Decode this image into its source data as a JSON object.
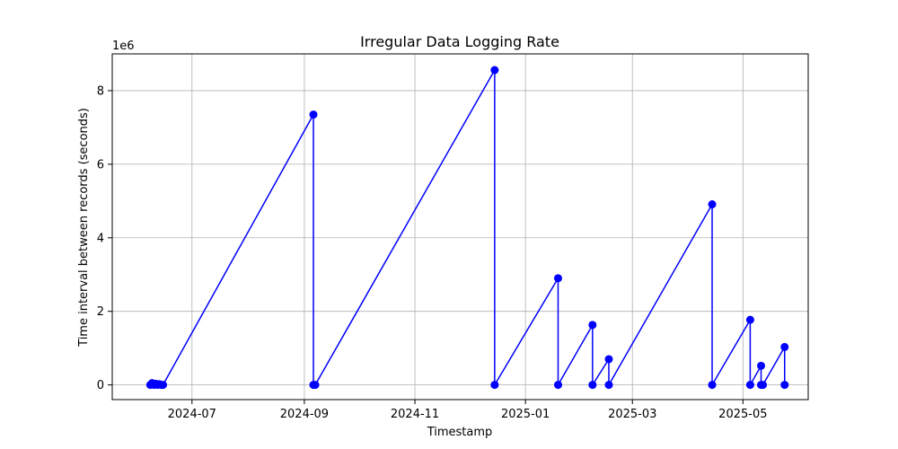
{
  "chart_data": {
    "type": "line",
    "title": "Irregular Data Logging Rate",
    "xlabel": "Timestamp",
    "ylabel": "Time interval between records (seconds)",
    "y_offset_label": "1e6",
    "y_multiplier": 1000000,
    "xlim": [
      "2024-05-18",
      "2025-06-06"
    ],
    "ylim": [
      -400000,
      9000000
    ],
    "x_ticks": [
      "2024-07-01",
      "2024-09-01",
      "2024-11-01",
      "2025-01-01",
      "2025-03-01",
      "2025-05-01"
    ],
    "x_tick_labels": [
      "2024-07",
      "2024-09",
      "2024-11",
      "2025-01",
      "2025-03",
      "2025-05"
    ],
    "y_ticks": [
      0,
      2000000,
      4000000,
      6000000,
      8000000
    ],
    "y_tick_labels": [
      "0",
      "2",
      "4",
      "6",
      "8"
    ],
    "grid": true,
    "series": [
      {
        "color": "#0000ff",
        "marker": "circle",
        "points": [
          {
            "x": "2024-06-08",
            "y": 0
          },
          {
            "x": "2024-06-09",
            "y": 50000
          },
          {
            "x": "2024-06-10",
            "y": 0
          },
          {
            "x": "2024-06-11",
            "y": 30000
          },
          {
            "x": "2024-06-12",
            "y": 0
          },
          {
            "x": "2024-06-13",
            "y": 20000
          },
          {
            "x": "2024-06-14",
            "y": 0
          },
          {
            "x": "2024-06-15",
            "y": 0
          },
          {
            "x": "2024-09-06",
            "y": 7350000
          },
          {
            "x": "2024-09-06",
            "y": 0
          },
          {
            "x": "2024-09-07",
            "y": 0
          },
          {
            "x": "2024-12-15",
            "y": 8560000
          },
          {
            "x": "2024-12-15",
            "y": 0
          },
          {
            "x": "2025-01-19",
            "y": 2900000
          },
          {
            "x": "2025-01-19",
            "y": 0
          },
          {
            "x": "2025-02-07",
            "y": 1630000
          },
          {
            "x": "2025-02-07",
            "y": 0
          },
          {
            "x": "2025-02-16",
            "y": 700000
          },
          {
            "x": "2025-02-16",
            "y": 0
          },
          {
            "x": "2025-04-14",
            "y": 4910000
          },
          {
            "x": "2025-04-14",
            "y": 0
          },
          {
            "x": "2025-05-05",
            "y": 1770000
          },
          {
            "x": "2025-05-05",
            "y": 0
          },
          {
            "x": "2025-05-11",
            "y": 520000
          },
          {
            "x": "2025-05-11",
            "y": 0
          },
          {
            "x": "2025-05-12",
            "y": 0
          },
          {
            "x": "2025-05-24",
            "y": 1030000
          },
          {
            "x": "2025-05-24",
            "y": 0
          }
        ]
      }
    ]
  }
}
